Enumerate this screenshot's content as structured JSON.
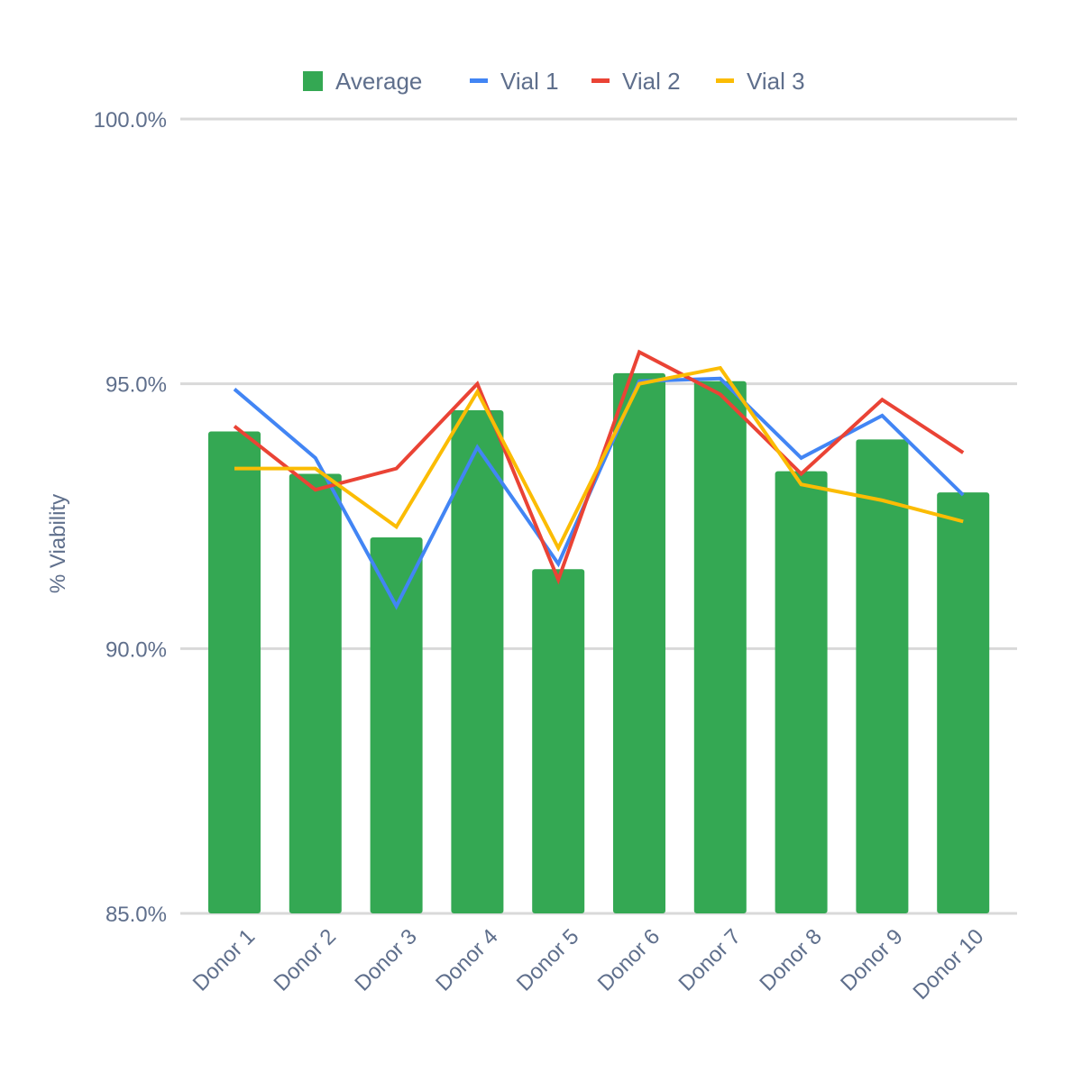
{
  "chart_data": {
    "type": "bar",
    "title": "",
    "xlabel": "",
    "ylabel": "% Viability",
    "ylim": [
      85,
      100
    ],
    "yticks": [
      85,
      90,
      95,
      100
    ],
    "ytick_labels": [
      "85.0%",
      "90.0%",
      "95.0%",
      "100.0%"
    ],
    "grid": true,
    "legend_position": "top",
    "categories": [
      "Donor 1",
      "Donor 2",
      "Donor 3",
      "Donor 4",
      "Donor 5",
      "Donor 6",
      "Donor 7",
      "Donor 8",
      "Donor 9",
      "Donor 10"
    ],
    "series": [
      {
        "name": "Average",
        "kind": "bar",
        "color": "#34a853",
        "values": [
          94.1,
          93.3,
          92.1,
          94.5,
          91.5,
          95.2,
          95.05,
          93.35,
          93.95,
          92.95
        ]
      },
      {
        "name": "Vial 1",
        "kind": "line",
        "color": "#4285f4",
        "values": [
          94.9,
          93.6,
          90.8,
          93.8,
          91.6,
          95.05,
          95.1,
          93.6,
          94.4,
          92.9
        ]
      },
      {
        "name": "Vial 2",
        "kind": "line",
        "color": "#ea4335",
        "values": [
          94.2,
          93.0,
          93.4,
          95.0,
          91.3,
          95.6,
          94.8,
          93.3,
          94.7,
          93.7
        ]
      },
      {
        "name": "Vial 3",
        "kind": "line",
        "color": "#fbbc04",
        "values": [
          93.4,
          93.4,
          92.3,
          94.85,
          91.9,
          95.0,
          95.3,
          93.1,
          92.8,
          92.4
        ]
      }
    ]
  }
}
